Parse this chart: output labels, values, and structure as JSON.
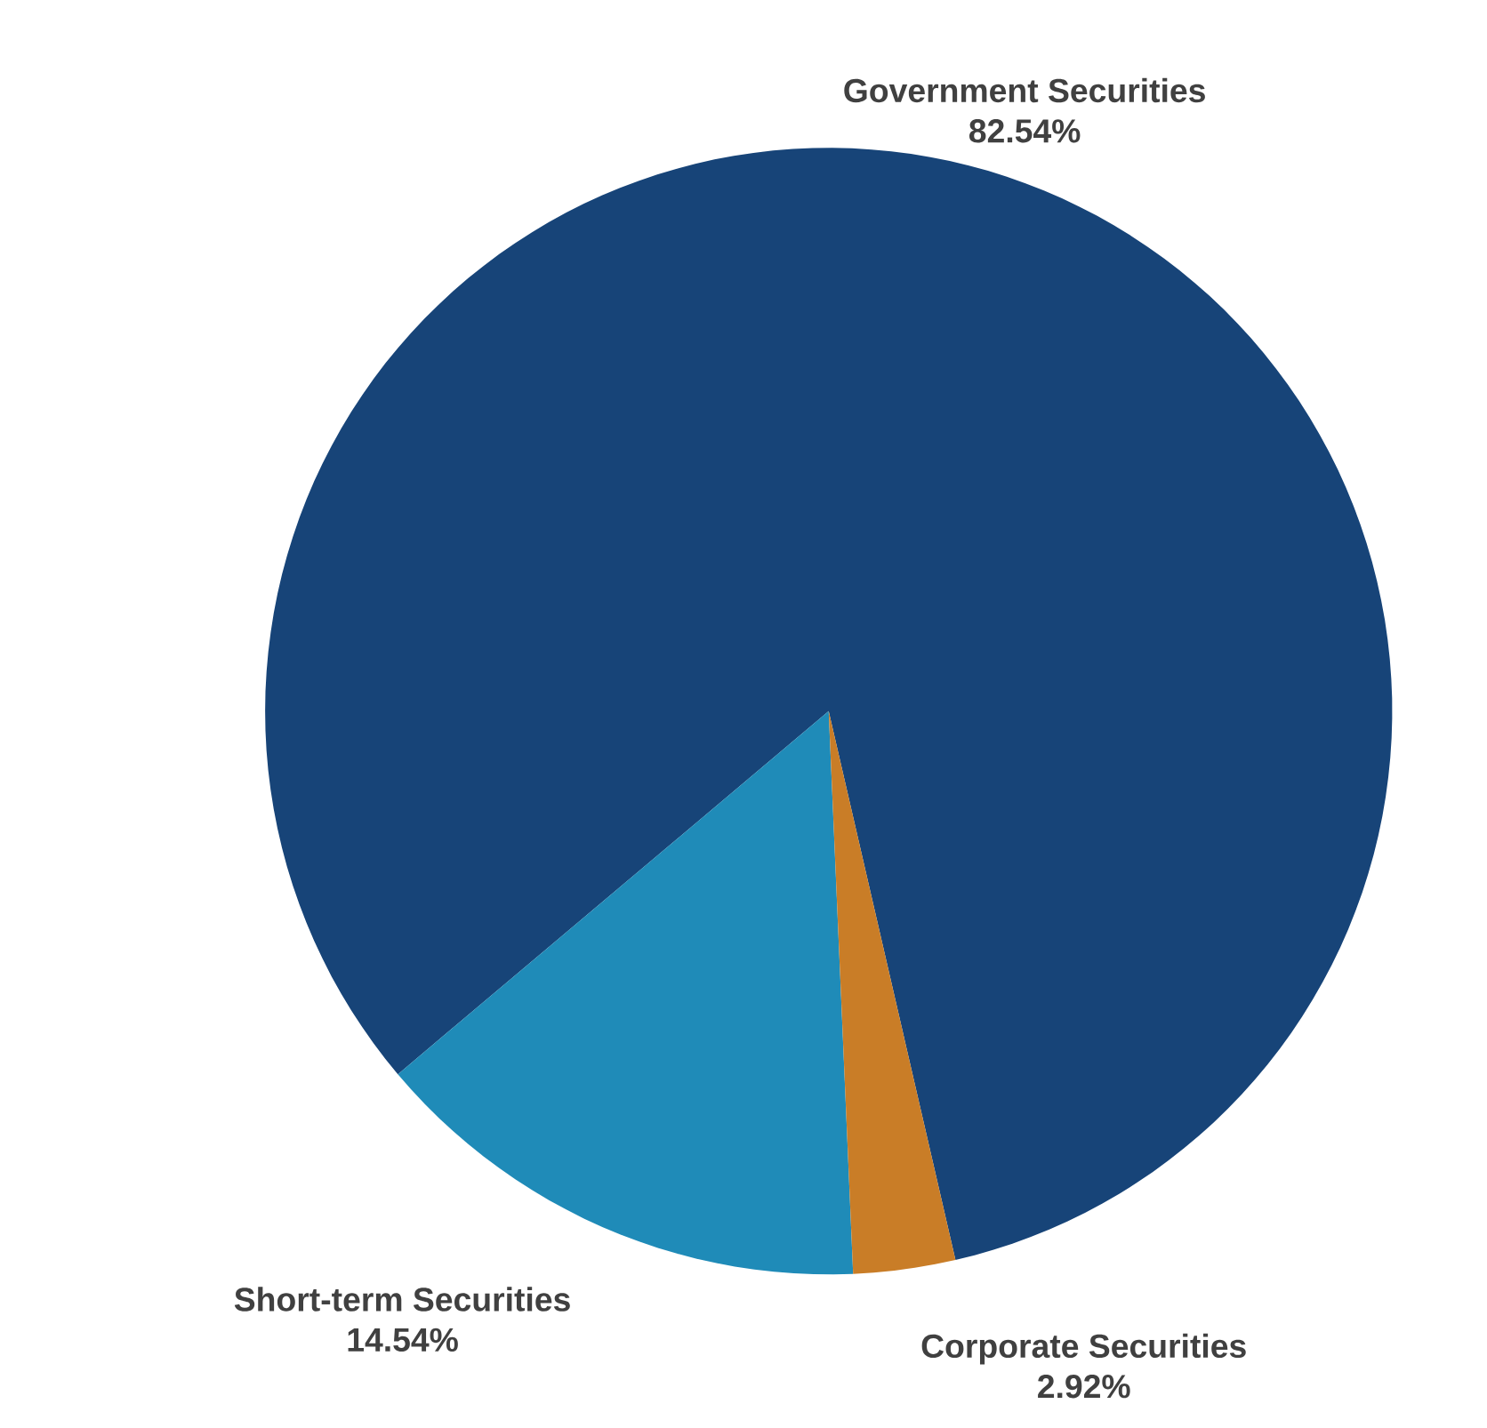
{
  "chart_data": {
    "type": "pie",
    "categories": [
      "Government Securities",
      "Short-term Securities",
      "Corporate Securities"
    ],
    "values": [
      82.54,
      14.54,
      2.92
    ],
    "value_labels": [
      "82.54%",
      "14.54%",
      "2.92%"
    ],
    "colors": [
      "#174478",
      "#1f8bb8",
      "#c97d27"
    ]
  }
}
